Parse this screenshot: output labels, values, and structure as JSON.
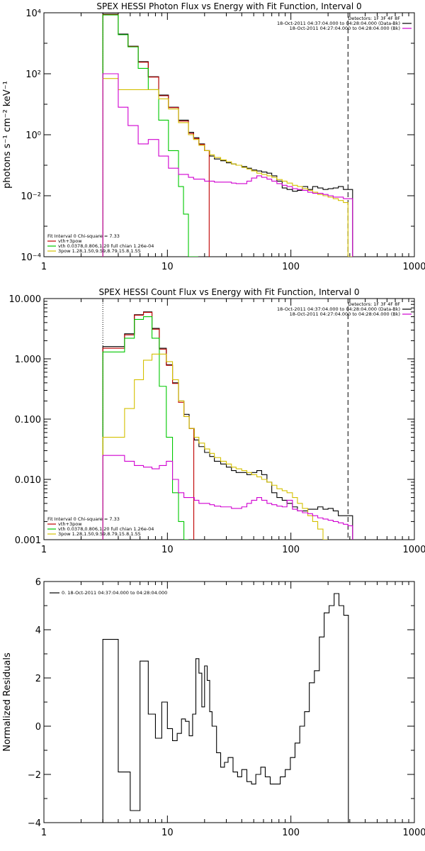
{
  "chart_data": [
    {
      "type": "line",
      "title": "SPEX HESSI Photon Flux vs Energy with Fit Function, Interval 0",
      "ylabel": "photons s⁻¹ cm⁻² keV⁻¹",
      "xlabel": "",
      "xscale": "log",
      "yscale": "log",
      "xlim": [
        1,
        1000
      ],
      "ylim": [
        0.0001,
        10000
      ],
      "x_ticks": [
        1,
        10,
        100,
        1000
      ],
      "x_tick_labels": [
        "1",
        "10",
        "100",
        "1000"
      ],
      "y_ticks": [
        0.0001,
        0.01,
        1,
        100,
        10000
      ],
      "y_tick_labels": [
        "10⁻⁴",
        "10⁻²",
        "10⁰",
        "10²",
        "10⁴"
      ],
      "vlines": [
        {
          "x": 3,
          "style": "dotted",
          "color": "#000000"
        },
        {
          "x": 290,
          "style": "dashed",
          "color": "#000000"
        }
      ],
      "legend_topright": [
        {
          "text": "Detectors: 1F 3F 4F 8F",
          "color": "#000000"
        },
        {
          "text": "18-Oct-2011 04:37:04.000 to 04:28:04.000 (Data-Bk)",
          "color": "#000000"
        },
        {
          "text": "18-Oct-2011 04:27:04.000 to 04:28:04.000 (Bk)",
          "color": "#d000d0"
        }
      ],
      "legend_bottomleft": [
        {
          "text": "Fit Interval 0   Chi-square = 7.33",
          "color": "#000000"
        },
        {
          "text": "vth+3pow",
          "color": "#c00000"
        },
        {
          "text": "vth 0.0378,0.806,1.20  full chian 1.26e-04",
          "color": "#00c800"
        },
        {
          "text": "3pow 1.28,1.50,9.59,8.79,15.8,1.55",
          "color": "#d4c000"
        }
      ],
      "series": [
        {
          "name": "Data-Bk",
          "color": "#000000",
          "x": [
            3,
            3.3,
            3.6,
            4,
            4.4,
            4.8,
            5.3,
            5.8,
            6.4,
            7,
            7.7,
            8.5,
            9.3,
            10.2,
            11.2,
            12.3,
            13.5,
            14.8,
            16.3,
            18,
            20,
            22,
            24,
            27,
            30,
            33,
            36,
            40,
            44,
            48,
            53,
            58,
            64,
            70,
            77,
            85,
            93,
            103,
            113,
            124,
            137,
            150,
            165,
            182,
            200,
            220,
            242,
            266,
            290
          ],
          "y": [
            9000,
            9000,
            9000,
            2000,
            2000,
            800,
            800,
            250,
            250,
            80,
            80,
            20,
            20,
            8,
            8,
            3,
            3,
            1.2,
            0.8,
            0.5,
            0.3,
            0.2,
            0.16,
            0.14,
            0.12,
            0.11,
            0.1,
            0.09,
            0.08,
            0.07,
            0.065,
            0.06,
            0.055,
            0.045,
            0.03,
            0.018,
            0.016,
            0.014,
            0.015,
            0.02,
            0.016,
            0.02,
            0.018,
            0.016,
            0.017,
            0.018,
            0.02,
            0.016,
            0.016
          ]
        },
        {
          "name": "vth+3pow",
          "color": "#c00000",
          "x": [
            3,
            3.3,
            3.6,
            4,
            4.4,
            4.8,
            5.3,
            5.8,
            6.4,
            7,
            7.7,
            8.5,
            9.3,
            10.2,
            11.2,
            12.3,
            13.5,
            14.8,
            16.3,
            18,
            20
          ],
          "y": [
            8800,
            8800,
            8800,
            1900,
            1900,
            780,
            780,
            240,
            240,
            78,
            78,
            19,
            19,
            7.8,
            7.8,
            2.8,
            2.8,
            1.1,
            0.75,
            0.48,
            0.3
          ]
        },
        {
          "name": "vth",
          "color": "#00c800",
          "x": [
            3,
            3.3,
            3.6,
            4,
            4.4,
            4.8,
            5.3,
            5.8,
            6.4,
            7,
            7.7,
            8.5,
            9.3,
            10.2,
            11.2,
            12.3,
            13.5,
            14.8,
            16.3
          ],
          "y": [
            8500,
            8500,
            8500,
            1900,
            1900,
            760,
            760,
            150,
            150,
            30,
            30,
            3,
            3,
            0.3,
            0.3,
            0.02,
            0.0025,
            0.0001,
            0.0001
          ]
        },
        {
          "name": "3pow",
          "color": "#d4c000",
          "x": [
            3,
            3.3,
            3.6,
            4,
            4.4,
            4.8,
            5.3,
            5.8,
            6.4,
            7,
            7.7,
            8.5,
            9.3,
            10.2,
            11.2,
            12.3,
            13.5,
            14.8,
            16.3,
            18,
            20,
            22,
            24,
            27,
            30,
            33,
            36,
            40,
            44,
            48,
            53,
            58,
            64,
            70,
            77,
            85,
            93,
            103,
            113,
            124,
            137,
            150,
            165,
            182,
            200,
            220,
            242,
            266,
            290
          ],
          "y": [
            70,
            70,
            70,
            30,
            30,
            30,
            30,
            30,
            30,
            30,
            30,
            15,
            15,
            7,
            7,
            2.5,
            2.5,
            1,
            0.7,
            0.45,
            0.3,
            0.22,
            0.18,
            0.15,
            0.13,
            0.11,
            0.1,
            0.085,
            0.075,
            0.065,
            0.055,
            0.05,
            0.045,
            0.04,
            0.034,
            0.03,
            0.026,
            0.022,
            0.02,
            0.017,
            0.015,
            0.013,
            0.011,
            0.01,
            0.009,
            0.008,
            0.007,
            0.006,
            0.0001
          ]
        },
        {
          "name": "Bk",
          "color": "#d000d0",
          "x": [
            3,
            3.3,
            3.6,
            4,
            4.4,
            4.8,
            5.3,
            5.8,
            6.4,
            7,
            7.7,
            8.5,
            9.3,
            10.2,
            11.2,
            12.3,
            13.5,
            14.8,
            16.3,
            18,
            20,
            22,
            24,
            27,
            30,
            33,
            36,
            40,
            44,
            48,
            53,
            58,
            64,
            70,
            77,
            85,
            93,
            103,
            113,
            124,
            137,
            150,
            165,
            182,
            200,
            220,
            242,
            266,
            290
          ],
          "y": [
            100,
            100,
            100,
            8,
            8,
            2,
            2,
            0.5,
            0.5,
            0.7,
            0.7,
            0.2,
            0.2,
            0.08,
            0.08,
            0.05,
            0.05,
            0.04,
            0.035,
            0.035,
            0.03,
            0.03,
            0.028,
            0.028,
            0.028,
            0.026,
            0.025,
            0.025,
            0.03,
            0.038,
            0.045,
            0.04,
            0.035,
            0.03,
            0.025,
            0.022,
            0.02,
            0.017,
            0.016,
            0.015,
            0.013,
            0.012,
            0.012,
            0.011,
            0.01,
            0.009,
            0.009,
            0.008,
            0.008
          ]
        }
      ]
    },
    {
      "type": "line",
      "title": "SPEX HESSI Count Flux vs Energy with Fit Function, Interval 0",
      "ylabel": "",
      "xlabel": "",
      "xscale": "log",
      "yscale": "log",
      "xlim": [
        1,
        1000
      ],
      "ylim": [
        0.001,
        10
      ],
      "x_ticks": [
        1,
        10,
        100,
        1000
      ],
      "x_tick_labels": [
        "1",
        "10",
        "100",
        "1000"
      ],
      "y_ticks": [
        0.001,
        0.01,
        0.1,
        1,
        10
      ],
      "y_tick_labels": [
        "0.001",
        "0.010",
        "0.100",
        "1.000",
        "10.000"
      ],
      "vlines": [
        {
          "x": 3,
          "style": "dotted",
          "color": "#000000"
        },
        {
          "x": 290,
          "style": "dashed",
          "color": "#000000"
        }
      ],
      "legend_topright": [
        {
          "text": "Detectors: 1F 3F 4F 8F",
          "color": "#000000"
        },
        {
          "text": "18-Oct-2011 04:37:04.000 to 04:28:04.000 (Data-Bk)",
          "color": "#000000"
        },
        {
          "text": "18-Oct-2011 04:27:04.000 to 04:28:04.000 (Bk)",
          "color": "#d000d0"
        }
      ],
      "legend_bottomleft": [
        {
          "text": "Fit Interval 0   Chi-square = 7.33",
          "color": "#000000"
        },
        {
          "text": "vth+3pow",
          "color": "#c00000"
        },
        {
          "text": "vth 0.0378,0.806,1.20  full chian 1.26e-04",
          "color": "#00c800"
        },
        {
          "text": "3pow 1.28,1.50,9.59,8.79,15.8,1.55",
          "color": "#d4c000"
        }
      ],
      "series": [
        {
          "name": "Data-Bk",
          "color": "#000000",
          "x": [
            3,
            3.7,
            4.5,
            5.4,
            6.4,
            7.5,
            8.6,
            9.8,
            11,
            12.3,
            13.6,
            15,
            16.5,
            18,
            20,
            22,
            24,
            27,
            30,
            33,
            36,
            40,
            44,
            48,
            53,
            58,
            64,
            70,
            77,
            85,
            93,
            103,
            113,
            124,
            137,
            150,
            165,
            182,
            200,
            220,
            242,
            266,
            290
          ],
          "y": [
            1.6,
            1.6,
            2.6,
            5.4,
            6.0,
            3.2,
            1.5,
            0.8,
            0.4,
            0.2,
            0.12,
            0.07,
            0.045,
            0.035,
            0.028,
            0.024,
            0.02,
            0.018,
            0.016,
            0.014,
            0.013,
            0.013,
            0.012,
            0.013,
            0.014,
            0.012,
            0.009,
            0.006,
            0.005,
            0.0045,
            0.004,
            0.0035,
            0.003,
            0.003,
            0.0032,
            0.0032,
            0.0035,
            0.0032,
            0.0033,
            0.003,
            0.0025,
            0.0025,
            0.0025
          ]
        },
        {
          "name": "vth+3pow",
          "color": "#c00000",
          "x": [
            3,
            3.7,
            4.5,
            5.4,
            6.4,
            7.5,
            8.6,
            9.8,
            11,
            12.3,
            13.6,
            15
          ],
          "y": [
            1.5,
            1.5,
            2.5,
            5.3,
            5.9,
            3.1,
            1.45,
            0.78,
            0.39,
            0.19,
            0.11,
            0.07
          ]
        },
        {
          "name": "vth",
          "color": "#00c800",
          "x": [
            3,
            3.7,
            4.5,
            5.4,
            6.4,
            7.5,
            8.6,
            9.8,
            11,
            12.3,
            13.6
          ],
          "y": [
            1.3,
            1.3,
            2.2,
            4.5,
            5.0,
            2.2,
            0.35,
            0.05,
            0.006,
            0.002,
            0.001
          ]
        },
        {
          "name": "3pow",
          "color": "#d4c000",
          "x": [
            3,
            3.7,
            4.5,
            5.4,
            6.4,
            7.5,
            8.6,
            9.8,
            11,
            12.3,
            13.6,
            15,
            16.5,
            18,
            20,
            22,
            24,
            27,
            30,
            33,
            36,
            40,
            44,
            48,
            53,
            58,
            64,
            70,
            77,
            85,
            93,
            103,
            113,
            124,
            137,
            150,
            165,
            182
          ],
          "y": [
            0.05,
            0.05,
            0.15,
            0.45,
            0.95,
            1.2,
            1.2,
            0.9,
            0.45,
            0.2,
            0.11,
            0.07,
            0.05,
            0.04,
            0.032,
            0.027,
            0.023,
            0.02,
            0.018,
            0.016,
            0.015,
            0.014,
            0.013,
            0.012,
            0.011,
            0.01,
            0.009,
            0.008,
            0.007,
            0.0065,
            0.006,
            0.005,
            0.004,
            0.0033,
            0.0025,
            0.002,
            0.0015,
            0.001
          ]
        },
        {
          "name": "Bk",
          "color": "#d000d0",
          "x": [
            3,
            3.7,
            4.5,
            5.4,
            6.4,
            7.5,
            8.6,
            9.8,
            11,
            12.3,
            13.6,
            15,
            16.5,
            18,
            20,
            22,
            24,
            27,
            30,
            33,
            36,
            40,
            44,
            48,
            53,
            58,
            64,
            70,
            77,
            85,
            93,
            103,
            113,
            124,
            137,
            150,
            165,
            182,
            200,
            220,
            242,
            266,
            290
          ],
          "y": [
            0.025,
            0.025,
            0.02,
            0.017,
            0.016,
            0.015,
            0.017,
            0.02,
            0.01,
            0.006,
            0.005,
            0.005,
            0.0045,
            0.004,
            0.004,
            0.0038,
            0.0036,
            0.0035,
            0.0035,
            0.0033,
            0.0033,
            0.0035,
            0.004,
            0.0045,
            0.005,
            0.0045,
            0.004,
            0.0038,
            0.0036,
            0.0035,
            0.0045,
            0.0032,
            0.003,
            0.0028,
            0.0027,
            0.0025,
            0.0023,
            0.0022,
            0.0021,
            0.002,
            0.0019,
            0.0018,
            0.0017
          ]
        }
      ]
    },
    {
      "type": "line",
      "title": "",
      "ylabel": "Normalized Residuals",
      "xlabel": "",
      "xscale": "log",
      "yscale": "linear",
      "xlim": [
        1,
        1000
      ],
      "ylim": [
        -4,
        6
      ],
      "x_ticks": [
        1,
        10,
        100,
        1000
      ],
      "x_tick_labels": [
        "1",
        "10",
        "100",
        "1000"
      ],
      "y_ticks": [
        -4,
        -2,
        0,
        2,
        4,
        6
      ],
      "y_tick_labels": [
        "−4",
        "−2",
        "0",
        "2",
        "4",
        "6"
      ],
      "legend_topleft": [
        {
          "text": "0. 18-Oct-2011 04:37:04.000 to 04:28:04.000",
          "color": "#000000"
        }
      ],
      "series": [
        {
          "name": "",
          "color": "#000000",
          "x": [
            3,
            4,
            5,
            6,
            7,
            8,
            9,
            10,
            11,
            12,
            13,
            14,
            15,
            16,
            17,
            18,
            19,
            20,
            21,
            22,
            23,
            25,
            27,
            29,
            31,
            34,
            37,
            40,
            44,
            48,
            52,
            57,
            62,
            68,
            75,
            82,
            90,
            99,
            108,
            118,
            129,
            141,
            155,
            170,
            186,
            204,
            224,
            245,
            268
          ],
          "y": [
            3.6,
            -1.9,
            -3.5,
            2.7,
            0.5,
            -0.5,
            1.0,
            -0.1,
            -0.6,
            -0.3,
            0.3,
            0.2,
            -0.4,
            0.5,
            2.8,
            2.2,
            0.8,
            2.5,
            1.9,
            0.6,
            0.0,
            -1.1,
            -1.7,
            -1.5,
            -1.3,
            -1.9,
            -2.1,
            -1.8,
            -2.3,
            -2.4,
            -2.0,
            -1.7,
            -2.1,
            -2.4,
            -2.4,
            -2.1,
            -1.8,
            -1.3,
            -0.7,
            0.0,
            0.6,
            1.8,
            2.3,
            3.7,
            4.7,
            5.0,
            5.5,
            5.0,
            4.6
          ]
        }
      ]
    }
  ]
}
